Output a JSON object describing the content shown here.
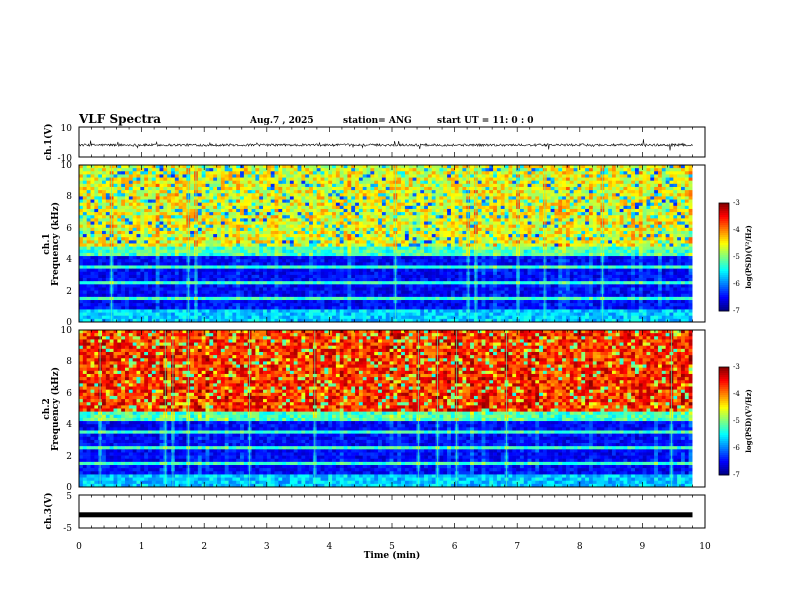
{
  "header": {
    "title": "VLF Spectra",
    "date": "Aug.7  , 2025",
    "station": "station= ANG",
    "start_ut": "start  UT  =   11: 0  : 0"
  },
  "chart_data": [
    {
      "type": "line",
      "name": "ch1-waveform",
      "ylabel": "ch.1(V)",
      "ylim": [
        -10,
        10
      ],
      "yticks": [
        "10",
        "-10"
      ],
      "xlim": [
        0,
        10
      ],
      "baseline": -2,
      "noise_amplitude": 0.8,
      "data_extent_min": 9.8
    },
    {
      "type": "heatmap",
      "name": "ch1-spectrogram",
      "ylabel_line1": "ch.1",
      "ylabel_line2": "Frequency  (kHz)",
      "ylim": [
        0,
        10
      ],
      "yticks": [
        "0",
        "2",
        "4",
        "6",
        "8",
        "10"
      ],
      "xlim": [
        0,
        10
      ],
      "colorbar": {
        "label": "log(PSD)(V²/Hz)",
        "range": [
          -7,
          -3
        ],
        "ticks": [
          "-3",
          "-4",
          "-5",
          "-6",
          "-7"
        ]
      },
      "high_band_level": -4.6
    },
    {
      "type": "heatmap",
      "name": "ch2-spectrogram",
      "ylabel_line1": "ch.2",
      "ylabel_line2": "Frequency  (kHz)",
      "ylim": [
        0,
        10
      ],
      "yticks": [
        "0",
        "2",
        "4",
        "6",
        "8",
        "10"
      ],
      "xlim": [
        0,
        10
      ],
      "colorbar": {
        "label": "log(PSD)(V²/Hz)",
        "range": [
          -7,
          -3
        ],
        "ticks": [
          "-3",
          "-4",
          "-5",
          "-6",
          "-7"
        ]
      },
      "high_band_level": -3.7
    },
    {
      "type": "line",
      "name": "ch3-waveform",
      "ylabel": "ch.3(V)",
      "ylim": [
        -5,
        5
      ],
      "yticks": [
        "5",
        "-5"
      ],
      "xlim": [
        0,
        10
      ],
      "baseline": -1,
      "noise_amplitude": 0.1
    }
  ],
  "x_axis": {
    "label": "Time  (min)",
    "ticks": [
      "0",
      "1",
      "2",
      "3",
      "4",
      "5",
      "6",
      "7",
      "8",
      "9",
      "10"
    ]
  }
}
